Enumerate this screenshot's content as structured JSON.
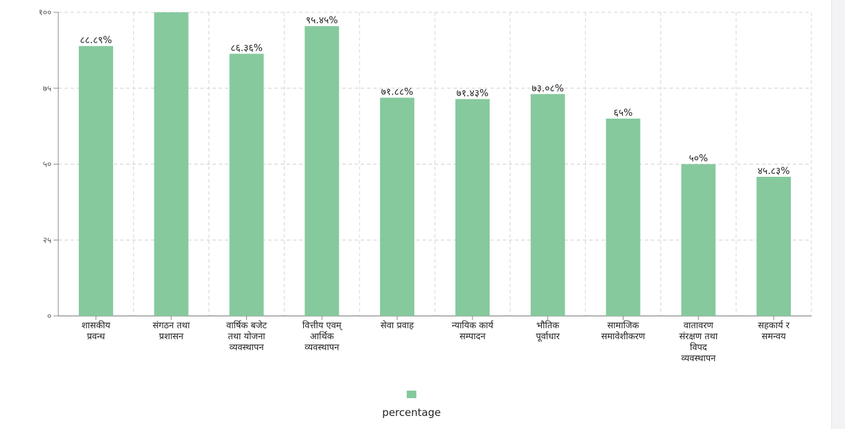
{
  "chart_data": {
    "type": "bar",
    "categories": [
      [
        "शासकीय",
        "प्रवन्ध"
      ],
      [
        "संगठन तथा",
        "प्रशासन"
      ],
      [
        "वार्षिक बजेट",
        "तथा योजना",
        "व्यवस्थापन"
      ],
      [
        "वित्तीय एवम्",
        "आर्थिक",
        "व्यवस्थापन"
      ],
      [
        "सेवा प्रवाह"
      ],
      [
        "न्यायिक कार्य",
        "सम्पादन"
      ],
      [
        "भौतिक",
        "पूर्वाधार"
      ],
      [
        "सामाजिक",
        "समावेशीकरण"
      ],
      [
        "वातावरण",
        "संरक्षण तथा",
        "विपद",
        "व्यवस्थापन"
      ],
      [
        "सहकार्य र",
        "समन्वय"
      ]
    ],
    "values": [
      88.89,
      100,
      86.36,
      95.45,
      71.88,
      71.43,
      73.08,
      65,
      50,
      45.83
    ],
    "value_labels": [
      "८८.८९%",
      "",
      "८६.३६%",
      "९५.४५%",
      "७१.८८%",
      "७१.४३%",
      "७३.०८%",
      "६५%",
      "५०%",
      "४५.८३%"
    ],
    "ylim": [
      0,
      100
    ],
    "yticks": [
      0,
      25,
      50,
      75,
      100
    ],
    "ytick_labels": [
      "०",
      "२५",
      "५०",
      "७५",
      "१००"
    ],
    "grid": true,
    "legend_position": "bottom",
    "series": [
      {
        "name": "percentage",
        "color": "#85c99d"
      }
    ]
  },
  "legend": {
    "label": "percentage",
    "color": "#85c99d"
  }
}
